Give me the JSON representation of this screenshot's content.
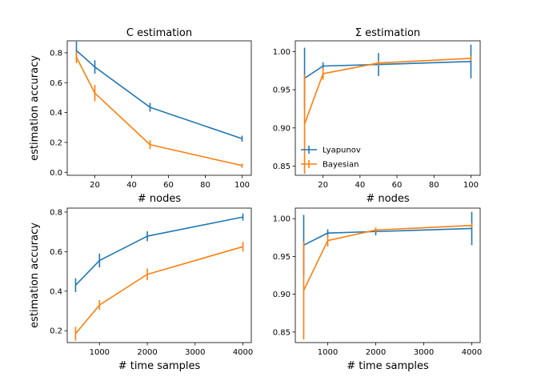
{
  "colors": {
    "lyapunov": "#1f77b4",
    "bayesian": "#ff7f0e"
  },
  "legend": {
    "placement": "lower-left",
    "panel": 1,
    "entries": [
      "Lyapunov",
      "Bayesian"
    ]
  },
  "chart_data": [
    {
      "type": "line",
      "title": "C estimation",
      "xlabel": "# nodes",
      "ylabel": "estimation accuracy",
      "xlim": [
        5,
        105
      ],
      "ylim": [
        -0.02,
        0.88
      ],
      "xticks": [
        20,
        40,
        60,
        80,
        100
      ],
      "yticks": [
        0.0,
        0.2,
        0.4,
        0.6,
        0.8
      ],
      "tick_decimals": 1,
      "x": [
        10,
        20,
        50,
        100
      ],
      "series": [
        {
          "name": "Lyapunov",
          "values": [
            0.815,
            0.705,
            0.435,
            0.225
          ],
          "err": [
            0.06,
            0.045,
            0.03,
            0.02
          ]
        },
        {
          "name": "Bayesian",
          "values": [
            0.77,
            0.53,
            0.185,
            0.045
          ],
          "err": [
            0.04,
            0.055,
            0.03,
            0.015
          ]
        }
      ]
    },
    {
      "type": "line",
      "title": "Σ estimation",
      "xlabel": "# nodes",
      "ylabel": "",
      "xlim": [
        5,
        105
      ],
      "ylim": [
        0.838,
        1.014
      ],
      "xticks": [
        20,
        40,
        60,
        80,
        100
      ],
      "yticks": [
        0.85,
        0.9,
        0.95,
        1.0
      ],
      "tick_decimals": 2,
      "x": [
        10,
        20,
        50,
        100
      ],
      "series": [
        {
          "name": "Lyapunov",
          "values": [
            0.965,
            0.981,
            0.983,
            0.987
          ],
          "err": [
            0.04,
            0.005,
            0.015,
            0.022
          ]
        },
        {
          "name": "Bayesian",
          "values": [
            0.905,
            0.971,
            0.985,
            0.991
          ],
          "err": [
            0.065,
            0.008,
            0.003,
            0.003
          ]
        }
      ]
    },
    {
      "type": "line",
      "title": "",
      "xlabel": "# time samples",
      "ylabel": "estimation accuracy",
      "xlim": [
        325,
        4175
      ],
      "ylim": [
        0.14,
        0.82
      ],
      "xticks": [
        1000,
        2000,
        3000,
        4000
      ],
      "yticks": [
        0.2,
        0.4,
        0.6,
        0.8
      ],
      "tick_decimals": 1,
      "x": [
        500,
        1000,
        2000,
        4000
      ],
      "series": [
        {
          "name": "Lyapunov",
          "values": [
            0.43,
            0.555,
            0.678,
            0.775
          ],
          "err": [
            0.035,
            0.035,
            0.025,
            0.018
          ]
        },
        {
          "name": "Bayesian",
          "values": [
            0.185,
            0.33,
            0.485,
            0.625
          ],
          "err": [
            0.035,
            0.025,
            0.03,
            0.025
          ]
        }
      ]
    },
    {
      "type": "line",
      "title": "",
      "xlabel": "# time samples",
      "ylabel": "",
      "xlim": [
        325,
        4175
      ],
      "ylim": [
        0.836,
        1.014
      ],
      "xticks": [
        1000,
        2000,
        3000,
        4000
      ],
      "yticks": [
        0.85,
        0.9,
        0.95,
        1.0
      ],
      "tick_decimals": 2,
      "x": [
        500,
        1000,
        2000,
        4000
      ],
      "series": [
        {
          "name": "Lyapunov",
          "values": [
            0.965,
            0.981,
            0.983,
            0.987
          ],
          "err": [
            0.04,
            0.005,
            0.005,
            0.022
          ]
        },
        {
          "name": "Bayesian",
          "values": [
            0.905,
            0.971,
            0.985,
            0.991
          ],
          "err": [
            0.065,
            0.008,
            0.003,
            0.003
          ]
        }
      ]
    }
  ]
}
